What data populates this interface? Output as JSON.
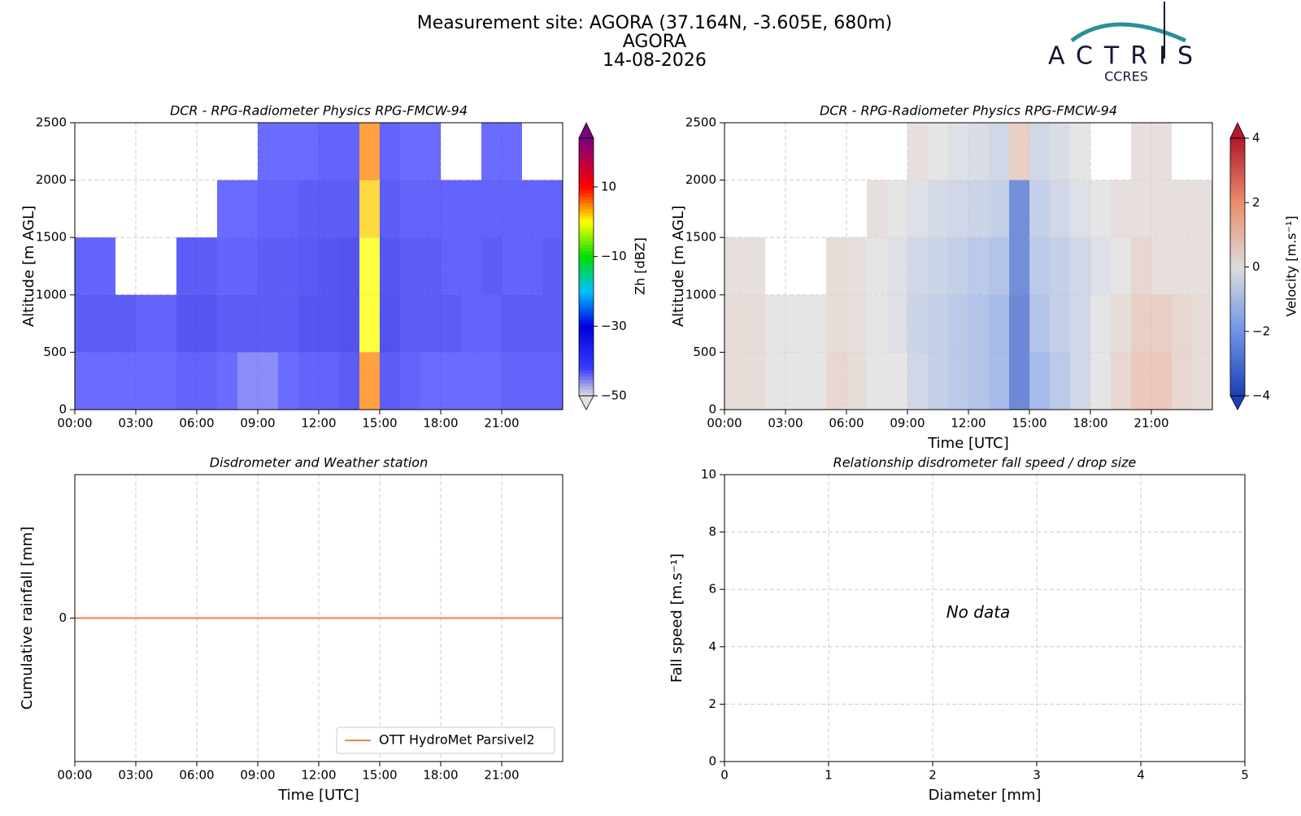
{
  "header": {
    "title": "Measurement site: AGORA (37.164N, -3.605E, 680m)",
    "site": "AGORA",
    "date": "14-08-2026",
    "logo": {
      "name": "ACTRIS",
      "sub": "CCRES"
    }
  },
  "chart_data": [
    {
      "type": "heatmap",
      "title": "DCR - RPG-Radiometer Physics RPG-FMCW-94",
      "ylabel": "Altitude [m AGL]",
      "xlim": [
        0,
        24
      ],
      "xticks": [
        {
          "value": 0,
          "label": "00:00"
        },
        {
          "value": 3,
          "label": "03:00"
        },
        {
          "value": 6,
          "label": "06:00"
        },
        {
          "value": 9,
          "label": "09:00"
        },
        {
          "value": 12,
          "label": "12:00"
        },
        {
          "value": 15,
          "label": "15:00"
        },
        {
          "value": 18,
          "label": "18:00"
        },
        {
          "value": 21,
          "label": "21:00"
        }
      ],
      "ylim": [
        0,
        2500
      ],
      "yticks": [
        0,
        500,
        1000,
        1500,
        2000,
        2500
      ],
      "grid": true,
      "x_edges": [
        0,
        1,
        2,
        3,
        4,
        5,
        6,
        7,
        8,
        9,
        10,
        11,
        12,
        13,
        14,
        15,
        16,
        17,
        18,
        19,
        20,
        21,
        22,
        23,
        24
      ],
      "y_edges": [
        0,
        500,
        1000,
        1500,
        2000,
        2500
      ],
      "z": [
        [
          -42,
          -42,
          -42,
          -42,
          -42,
          -40,
          -40,
          -42,
          -44,
          -44,
          -42,
          -40,
          -40,
          -38,
          5,
          -38,
          -40,
          -42,
          -42,
          -42,
          -42,
          -40,
          -40,
          -40
        ],
        [
          -38,
          -38,
          -38,
          -40,
          -40,
          -36,
          -36,
          -38,
          -38,
          -38,
          -38,
          -36,
          -36,
          -35,
          0,
          -35,
          -38,
          -38,
          -38,
          -40,
          -40,
          -38,
          -38,
          -38
        ],
        [
          -40,
          -40,
          null,
          null,
          null,
          -38,
          -38,
          -40,
          -40,
          -38,
          -38,
          -37,
          -36,
          -35,
          0,
          -36,
          -38,
          -38,
          -40,
          -40,
          -38,
          -40,
          -40,
          -38
        ],
        [
          null,
          null,
          null,
          null,
          null,
          null,
          null,
          -42,
          -42,
          -40,
          -40,
          -38,
          -38,
          -38,
          2,
          -38,
          -40,
          -40,
          -40,
          -40,
          -40,
          -40,
          -40,
          -40
        ],
        [
          null,
          null,
          null,
          null,
          null,
          null,
          null,
          null,
          null,
          -42,
          -42,
          -42,
          -40,
          -40,
          5,
          -40,
          -42,
          -42,
          null,
          null,
          -42,
          -42,
          null,
          null
        ]
      ],
      "colormap": "zh",
      "colorbar": {
        "label": "Zh [dBZ]",
        "lim": [
          -50,
          24
        ],
        "ticks": [
          {
            "value": -50,
            "label": "−50"
          },
          {
            "value": -30,
            "label": "−30"
          },
          {
            "value": -10,
            "label": "−10"
          },
          10
        ]
      }
    },
    {
      "type": "heatmap",
      "title": "DCR - RPG-Radiometer Physics RPG-FMCW-94",
      "ylabel": "Altitude [m AGL]",
      "xlabel": "Time [UTC]",
      "xlim": [
        0,
        24
      ],
      "xticks": [
        {
          "value": 0,
          "label": "00:00"
        },
        {
          "value": 3,
          "label": "03:00"
        },
        {
          "value": 6,
          "label": "06:00"
        },
        {
          "value": 9,
          "label": "09:00"
        },
        {
          "value": 12,
          "label": "12:00"
        },
        {
          "value": 15,
          "label": "15:00"
        },
        {
          "value": 18,
          "label": "18:00"
        },
        {
          "value": 21,
          "label": "21:00"
        }
      ],
      "ylim": [
        0,
        2500
      ],
      "yticks": [
        0,
        500,
        1000,
        1500,
        2000,
        2500
      ],
      "grid": true,
      "x_edges": [
        0,
        1,
        2,
        3,
        4,
        5,
        6,
        7,
        8,
        9,
        10,
        11,
        12,
        13,
        14,
        15,
        16,
        17,
        18,
        19,
        20,
        21,
        22,
        23,
        24
      ],
      "y_edges": [
        0,
        500,
        1000,
        1500,
        2000,
        2500
      ],
      "z": [
        [
          0.3,
          0.3,
          0,
          0,
          0,
          0.5,
          0.3,
          0,
          0,
          -0.5,
          -0.8,
          -1,
          -1.2,
          -1.5,
          -3.2,
          -1.5,
          -1,
          -0.5,
          0,
          0.5,
          1,
          1,
          0.5,
          0.3
        ],
        [
          0.3,
          0.3,
          0,
          0,
          0,
          0.3,
          0.2,
          0,
          -0.2,
          -0.6,
          -0.8,
          -1,
          -1.2,
          -1.5,
          -3.2,
          -1.2,
          -0.8,
          -0.5,
          0,
          0.3,
          0.8,
          0.8,
          0.5,
          0.3
        ],
        [
          0.2,
          0.2,
          null,
          null,
          null,
          0.3,
          0.2,
          0,
          -0.2,
          -0.5,
          -0.6,
          -0.8,
          -1,
          -1.2,
          -3,
          -1,
          -0.8,
          -0.5,
          -0.2,
          0,
          0.5,
          0.2,
          0.2,
          0.2
        ],
        [
          null,
          null,
          null,
          null,
          null,
          null,
          null,
          0.2,
          0,
          -0.2,
          -0.4,
          -0.5,
          -0.6,
          -0.8,
          -3,
          -0.8,
          -0.5,
          -0.2,
          0,
          0.2,
          0.2,
          0.2,
          0.2,
          0.2
        ],
        [
          null,
          null,
          null,
          null,
          null,
          null,
          null,
          null,
          null,
          0.2,
          0,
          -0.2,
          -0.3,
          -0.5,
          0.8,
          -0.5,
          -0.3,
          0,
          null,
          null,
          0.2,
          0.2,
          null,
          null
        ]
      ],
      "colormap": "vel",
      "colorbar": {
        "label": "Velocity [m.s⁻¹]",
        "lim": [
          -4,
          4
        ],
        "ticks": [
          {
            "value": -4,
            "label": "−4"
          },
          {
            "value": -2,
            "label": "−2"
          },
          0,
          2,
          4
        ]
      }
    },
    {
      "type": "line",
      "title": "Disdrometer and Weather station",
      "ylabel": "Cumulative rainfall [mm]",
      "xlabel": "Time [UTC]",
      "xlim": [
        0,
        24
      ],
      "xticks": [
        {
          "value": 0,
          "label": "00:00"
        },
        {
          "value": 3,
          "label": "03:00"
        },
        {
          "value": 6,
          "label": "06:00"
        },
        {
          "value": 9,
          "label": "09:00"
        },
        {
          "value": 12,
          "label": "12:00"
        },
        {
          "value": 15,
          "label": "15:00"
        },
        {
          "value": 18,
          "label": "18:00"
        },
        {
          "value": 21,
          "label": "21:00"
        }
      ],
      "ylim": [
        -0.055,
        0.055
      ],
      "yticks": [
        0
      ],
      "grid": true,
      "legend": "lower right",
      "x": [
        0,
        24
      ],
      "series": [
        {
          "name": "OTT HydroMet Parsivel2",
          "color": "#f08a5d",
          "values": [
            0,
            0
          ]
        }
      ]
    },
    {
      "type": "scatter",
      "title": "Relationship disdrometer fall speed / drop size",
      "ylabel": "Fall speed [m.s⁻¹]",
      "xlabel": "Diameter [mm]",
      "xlim": [
        0,
        5
      ],
      "xticks": [
        0,
        1,
        2,
        3,
        4,
        5
      ],
      "ylim": [
        0,
        10
      ],
      "yticks": [
        0,
        2,
        4,
        6,
        8,
        10
      ],
      "grid": true,
      "annotation": "No data"
    }
  ]
}
